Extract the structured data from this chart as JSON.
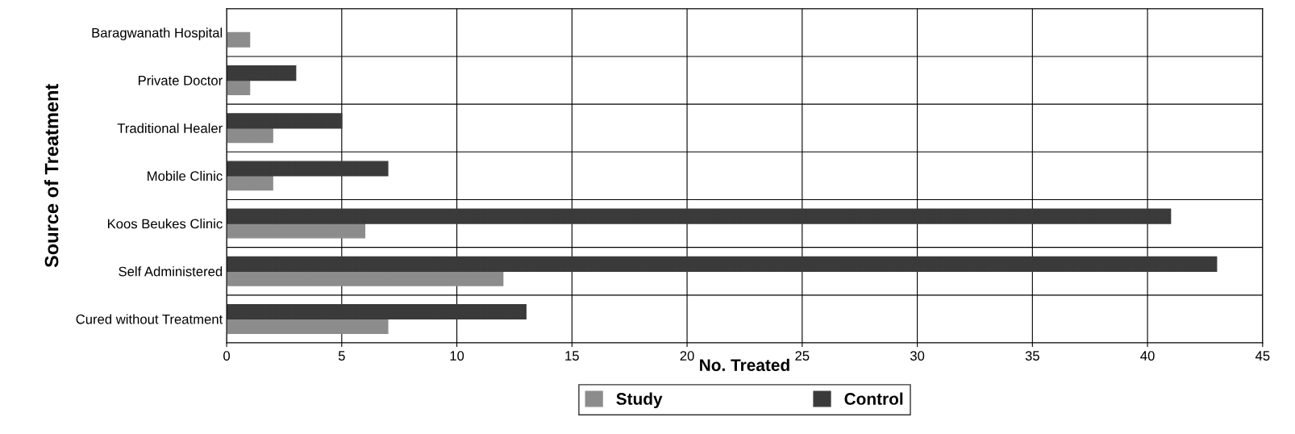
{
  "chart_data": {
    "type": "bar",
    "orientation": "horizontal",
    "categories": [
      "Baragwanath Hospital",
      "Private Doctor",
      "Traditional Healer",
      "Mobile Clinic",
      "Koos Beukes Clinic",
      "Self Administered",
      "Cured without Treatment"
    ],
    "series": [
      {
        "name": "Study",
        "color": "#8c8c8c",
        "values": [
          1,
          1,
          2,
          2,
          6,
          12,
          7
        ]
      },
      {
        "name": "Control",
        "color": "#3a3a3a",
        "values": [
          null,
          3,
          5,
          7,
          41,
          43,
          13
        ]
      }
    ],
    "xlabel": "No. Treated",
    "ylabel": "Source of Treatment",
    "xlim": [
      0,
      45
    ],
    "xticks": [
      0,
      5,
      10,
      15,
      20,
      25,
      30,
      35,
      40,
      45
    ],
    "grid": true,
    "legend": "bottom"
  }
}
